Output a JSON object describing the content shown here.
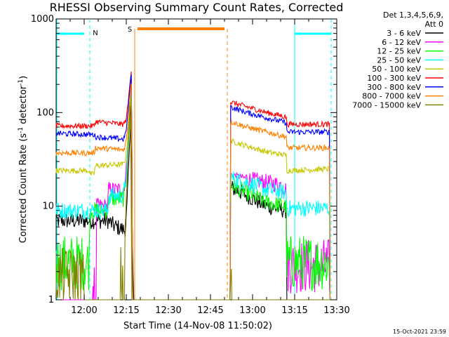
{
  "chart_data": {
    "type": "line",
    "title": "RHESSI Observing Summary Count Rates, Corrected",
    "xlabel": "Start Time (14-Nov-08 11:50:02)",
    "ylabel_prefix": "Corrected Count Rate (s",
    "ylabel_sup1": "-1",
    "ylabel_mid": " detector",
    "ylabel_sup2": "-1",
    "ylabel_suffix": ")",
    "ylabel": "Corrected Count Rate (s-1 detector-1)",
    "yscale": "log",
    "ylim": [
      1,
      1000
    ],
    "xlim": [
      "11:50",
      "13:30"
    ],
    "x_units": "minutes after 11:50",
    "x_ticks": [
      {
        "label": "12:00",
        "value": 10
      },
      {
        "label": "12:15",
        "value": 25
      },
      {
        "label": "12:30",
        "value": 40
      },
      {
        "label": "12:45",
        "value": 55
      },
      {
        "label": "13:00",
        "value": 70
      },
      {
        "label": "13:15",
        "value": 85
      },
      {
        "label": "13:30",
        "value": 100
      }
    ],
    "y_ticks": [
      {
        "label": "1",
        "value": 1
      },
      {
        "label": "10",
        "value": 10
      },
      {
        "label": "100",
        "value": 100
      },
      {
        "label": "1000",
        "value": 1000
      }
    ],
    "legend_header": [
      "Det 1,3,4,5,6,9,",
      "Att 0"
    ],
    "legend_position": "right",
    "grid": false,
    "series": [
      {
        "name": "3 - 6 keV",
        "color": "#000000",
        "points": [
          [
            -0.5,
            7
          ],
          [
            18.5,
            7
          ],
          [
            20.5,
            6.2
          ],
          [
            24.5,
            5.5
          ],
          [
            25.2,
            9
          ],
          [
            25.9,
            30
          ],
          [
            26.4,
            60
          ],
          [
            26.8,
            150
          ],
          [
            27,
            10
          ],
          [
            27.5,
            1
          ],
          [
            62,
            1
          ],
          [
            62,
            16
          ],
          [
            68,
            13
          ],
          [
            75,
            10
          ],
          [
            82,
            9
          ],
          [
            82,
            1
          ],
          [
            100,
            1
          ]
        ]
      },
      {
        "name": "6 - 12 keV",
        "color": "#ff00ff",
        "points": [
          [
            -0.5,
            1
          ],
          [
            13,
            1
          ],
          [
            13,
            1.8
          ],
          [
            14,
            1
          ],
          [
            14.3,
            1
          ],
          [
            14.3,
            10
          ],
          [
            18.5,
            10
          ],
          [
            18.6,
            15
          ],
          [
            24,
            15
          ],
          [
            24.7,
            20
          ],
          [
            25.3,
            35
          ],
          [
            25.9,
            70
          ],
          [
            26.4,
            120
          ],
          [
            26.9,
            250
          ],
          [
            27.2,
            1
          ],
          [
            62,
            1
          ],
          [
            62,
            22
          ],
          [
            70,
            19
          ],
          [
            80,
            17
          ],
          [
            82,
            15
          ],
          [
            82,
            2.3
          ],
          [
            97.5,
            2.3
          ],
          [
            97.5,
            1
          ],
          [
            100,
            1
          ]
        ]
      },
      {
        "name": "12 - 25 keV",
        "color": "#00ff00",
        "points": [
          [
            -0.5,
            2.5
          ],
          [
            12,
            2.5
          ],
          [
            12,
            9
          ],
          [
            18.5,
            9
          ],
          [
            18.6,
            12
          ],
          [
            24,
            12
          ],
          [
            24.6,
            15
          ],
          [
            25.3,
            25
          ],
          [
            26,
            60
          ],
          [
            26.5,
            120
          ],
          [
            26.9,
            260
          ],
          [
            27.2,
            1
          ],
          [
            62,
            1
          ],
          [
            62,
            17
          ],
          [
            70,
            13
          ],
          [
            75,
            11
          ],
          [
            82,
            10
          ],
          [
            82,
            2.5
          ],
          [
            97.5,
            2.5
          ],
          [
            97.5,
            1
          ],
          [
            100,
            1
          ]
        ]
      },
      {
        "name": "25 - 50 keV",
        "color": "#00ffff",
        "points": [
          [
            -0.5,
            9
          ],
          [
            18.5,
            9
          ],
          [
            18.6,
            13
          ],
          [
            24,
            13
          ],
          [
            24.7,
            18
          ],
          [
            25.3,
            30
          ],
          [
            25.9,
            70
          ],
          [
            26.4,
            140
          ],
          [
            26.9,
            270
          ],
          [
            27.2,
            1
          ],
          [
            62,
            1
          ],
          [
            62,
            20
          ],
          [
            68,
            18
          ],
          [
            75,
            15
          ],
          [
            82,
            14
          ],
          [
            82,
            9.5
          ],
          [
            97.5,
            9.5
          ],
          [
            97.5,
            1
          ],
          [
            100,
            1
          ]
        ]
      },
      {
        "name": "50 - 100 keV",
        "color": "#c8c800",
        "points": [
          [
            -0.5,
            24
          ],
          [
            12,
            24
          ],
          [
            12,
            22
          ],
          [
            13.5,
            22
          ],
          [
            14,
            27
          ],
          [
            24,
            28
          ],
          [
            24.7,
            32
          ],
          [
            25.3,
            45
          ],
          [
            25.9,
            80
          ],
          [
            26.4,
            150
          ],
          [
            26.9,
            250
          ],
          [
            27.2,
            1
          ],
          [
            62,
            1
          ],
          [
            62,
            50
          ],
          [
            68,
            44
          ],
          [
            75,
            38
          ],
          [
            82,
            35
          ],
          [
            82,
            24
          ],
          [
            97.5,
            25
          ],
          [
            97.5,
            1
          ],
          [
            100,
            1
          ]
        ]
      },
      {
        "name": "100 - 300 keV",
        "color": "#ff0000",
        "points": [
          [
            -0.5,
            72
          ],
          [
            13.5,
            72
          ],
          [
            14,
            80
          ],
          [
            24,
            75
          ],
          [
            24.7,
            80
          ],
          [
            25.3,
            100
          ],
          [
            25.9,
            150
          ],
          [
            26.4,
            230
          ],
          [
            26.9,
            300
          ],
          [
            27.2,
            1
          ],
          [
            62,
            1
          ],
          [
            62,
            130
          ],
          [
            68,
            115
          ],
          [
            75,
            100
          ],
          [
            82,
            90
          ],
          [
            82,
            75
          ],
          [
            97.5,
            75
          ],
          [
            97.5,
            1
          ],
          [
            100,
            1
          ]
        ]
      },
      {
        "name": "300 - 800 keV",
        "color": "#0000ff",
        "points": [
          [
            -0.5,
            60
          ],
          [
            13.5,
            58
          ],
          [
            14,
            55
          ],
          [
            24,
            52
          ],
          [
            24.7,
            58
          ],
          [
            25.3,
            80
          ],
          [
            25.9,
            130
          ],
          [
            26.4,
            200
          ],
          [
            26.9,
            280
          ],
          [
            27.2,
            1
          ],
          [
            62,
            1
          ],
          [
            62,
            115
          ],
          [
            68,
            100
          ],
          [
            75,
            88
          ],
          [
            82,
            78
          ],
          [
            82,
            62
          ],
          [
            97.5,
            62
          ],
          [
            97.5,
            1
          ],
          [
            100,
            1
          ]
        ]
      },
      {
        "name": "800 - 7000 keV",
        "color": "#ff8000",
        "points": [
          [
            -0.5,
            37
          ],
          [
            13.5,
            37
          ],
          [
            14,
            42
          ],
          [
            24,
            40
          ],
          [
            24.7,
            45
          ],
          [
            25.3,
            60
          ],
          [
            25.9,
            100
          ],
          [
            26.4,
            160
          ],
          [
            26.9,
            230
          ],
          [
            27.2,
            1
          ],
          [
            62,
            1
          ],
          [
            62,
            80
          ],
          [
            68,
            70
          ],
          [
            75,
            62
          ],
          [
            82,
            55
          ],
          [
            82,
            42
          ],
          [
            97.5,
            42
          ],
          [
            97.5,
            1
          ],
          [
            100,
            1
          ]
        ]
      },
      {
        "name": "7000 - 15000 keV",
        "color": "#808000",
        "points": [
          [
            -0.5,
            1.8
          ],
          [
            10,
            1.8
          ],
          [
            10,
            1
          ],
          [
            23,
            1
          ],
          [
            23,
            2
          ],
          [
            24,
            1
          ],
          [
            24.5,
            1
          ],
          [
            24.5,
            5
          ],
          [
            25.5,
            30
          ],
          [
            26.5,
            150
          ],
          [
            27,
            1
          ],
          [
            62,
            1
          ],
          [
            62,
            1.5
          ],
          [
            63,
            1
          ],
          [
            97.5,
            1
          ],
          [
            100,
            1
          ]
        ]
      }
    ],
    "markers": [
      {
        "kind": "night",
        "color": "#00ffff",
        "label": "N",
        "from": -0.5,
        "to": 12,
        "from2": 85,
        "to2": 98
      },
      {
        "kind": "saa",
        "color": "#ff8000",
        "label": "S",
        "from": 28,
        "to": 61
      }
    ]
  },
  "footer": {
    "timestamp": "15-Oct-2021 23:59"
  }
}
